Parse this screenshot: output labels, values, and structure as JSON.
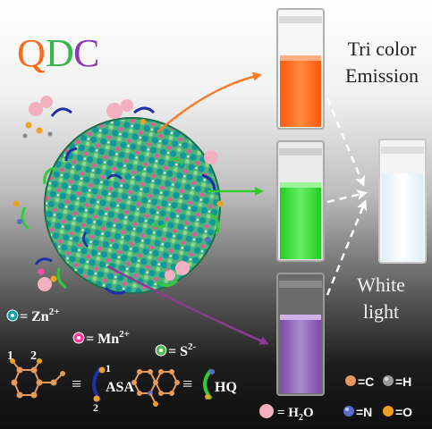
{
  "title": {
    "q": "Q",
    "d": "D",
    "c": "C"
  },
  "labels": {
    "tri_line1": "Tri color",
    "tri_line2": "Emission",
    "white_line1": "White",
    "white_line2": "light"
  },
  "legend": {
    "zn": "= Zn",
    "zn_sup": "2+",
    "mn": "= Mn",
    "mn_sup": "2+",
    "s": "= S",
    "s_sup": "2-",
    "c": "=C",
    "h": "=H",
    "h2o_pre": "= H",
    "h2o_sub": "2",
    "h2o_post": "O",
    "n": "=N",
    "o": "=O"
  },
  "ligands": {
    "num1": "1",
    "num2": "2",
    "equiv": "≡",
    "asa": "ASA",
    "asa_num1": "1",
    "asa_num2": "2",
    "hq": "HQ"
  },
  "colors": {
    "orange": "#ff6a1a",
    "green": "#33dd33",
    "purple": "#9a4aa0",
    "white_vial": "#eef6fb",
    "zn": "#14a0a8",
    "mn": "#ff3aa0",
    "s": "#55bb55"
  }
}
